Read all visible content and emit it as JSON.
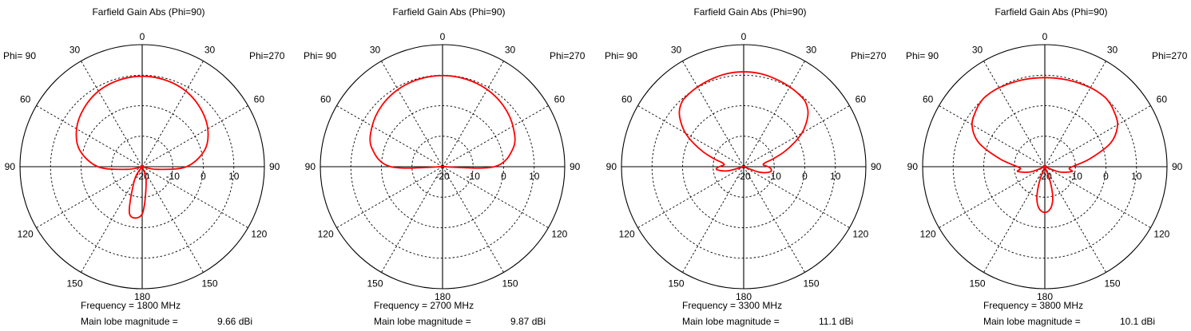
{
  "chart_data": [
    {
      "type": "polar",
      "title": "Farfield Gain Abs (Phi=90)",
      "left_label": "Phi= 90",
      "right_label": "Phi=270",
      "angle_labels": [
        "0",
        "30",
        "60",
        "90",
        "120",
        "150",
        "180",
        "150",
        "120",
        "90",
        "60",
        "30"
      ],
      "radial_ticks": [
        "-20",
        "-10",
        "0",
        "10"
      ],
      "rlim": [
        -20,
        20
      ],
      "grid": true,
      "series": [
        {
          "color": "#ff0000",
          "theta_deg": [
            0,
            15,
            30,
            45,
            60,
            75,
            90,
            100,
            110,
            120,
            135,
            150,
            165,
            180,
            195,
            210,
            225,
            240,
            250,
            260,
            270,
            285,
            300,
            315,
            330,
            345
          ],
          "gain_dbi": [
            9.66,
            9.4,
            8.6,
            7.0,
            4.8,
            1.2,
            -5.5,
            -15,
            -20,
            -20,
            -20,
            -15,
            -4.0,
            -4.5,
            -15,
            -20,
            -20,
            -20,
            -20,
            -15,
            -5.5,
            1.2,
            4.8,
            7.0,
            8.6,
            9.4
          ]
        }
      ],
      "frequency_text": "Frequency = 1800 MHz",
      "main_lobe_label": "Main lobe magnitude =",
      "main_lobe_value": "9.66 dBi"
    },
    {
      "type": "polar",
      "title": "Farfield Gain Abs (Phi=90)",
      "left_label": "Phi= 90",
      "right_label": "Phi=270",
      "angle_labels": [
        "0",
        "30",
        "60",
        "90",
        "120",
        "150",
        "180",
        "150",
        "120",
        "90",
        "60",
        "30"
      ],
      "radial_ticks": [
        "-20",
        "-10",
        "0",
        "10"
      ],
      "rlim": [
        -20,
        20
      ],
      "grid": true,
      "series": [
        {
          "color": "#ff0000",
          "theta_deg": [
            0,
            15,
            30,
            45,
            60,
            75,
            90,
            100,
            110,
            120,
            135,
            150,
            165,
            180,
            195,
            210,
            225,
            240,
            250,
            260,
            270,
            285,
            300,
            315,
            330,
            345
          ],
          "gain_dbi": [
            9.87,
            9.7,
            9.2,
            8.2,
            6.6,
            4.0,
            -3.0,
            -20,
            -20,
            -20,
            -20,
            -20,
            -20,
            -20,
            -20,
            -20,
            -20,
            -20,
            -20,
            -20,
            -3.0,
            4.0,
            6.6,
            8.2,
            9.2,
            9.7
          ]
        }
      ],
      "frequency_text": "Frequency = 2700 MHz",
      "main_lobe_label": "Main lobe magnitude =",
      "main_lobe_value": "9.87 dBi"
    },
    {
      "type": "polar",
      "title": "Farfield Gain Abs (Phi=90)",
      "left_label": "Phi= 90",
      "right_label": "Phi=270",
      "angle_labels": [
        "0",
        "30",
        "60",
        "90",
        "120",
        "150",
        "180",
        "150",
        "120",
        "90",
        "60",
        "30"
      ],
      "radial_ticks": [
        "-20",
        "-10",
        "0",
        "10"
      ],
      "rlim": [
        -20,
        20
      ],
      "grid": true,
      "series": [
        {
          "color": "#ff0000",
          "theta_deg": [
            0,
            10,
            20,
            30,
            40,
            45,
            50,
            55,
            60,
            65,
            70,
            75,
            80,
            85,
            90,
            95,
            100,
            105,
            110,
            120,
            135,
            150,
            165,
            180,
            195,
            210,
            225,
            240,
            250,
            255,
            260,
            265,
            270,
            275,
            280,
            285,
            290,
            295,
            300,
            305,
            310,
            315,
            320,
            330,
            340,
            350
          ],
          "gain_dbi": [
            11.1,
            11.0,
            10.6,
            10.2,
            9.7,
            9.0,
            7.5,
            5.0,
            2.0,
            -2.0,
            -6.0,
            -10.0,
            -13.0,
            -13.5,
            -12.0,
            -11.0,
            -12.5,
            -15.0,
            -20,
            -20,
            -20,
            -20,
            -20,
            -20,
            -20,
            -20,
            -20,
            -20,
            -15.0,
            -12.5,
            -11.0,
            -11.0,
            -12.0,
            -13.5,
            -13.0,
            -10.0,
            -6.0,
            -2.0,
            2.0,
            5.0,
            7.5,
            9.0,
            9.7,
            10.2,
            10.6,
            11.0
          ]
        }
      ],
      "frequency_text": "Frequency = 3300 MHz",
      "main_lobe_label": "Main lobe magnitude =",
      "main_lobe_value": "11.1 dBi"
    },
    {
      "type": "polar",
      "title": "Farfield Gain Abs (Phi=90)",
      "left_label": "Phi= 90",
      "right_label": "Phi=270",
      "angle_labels": [
        "0",
        "30",
        "60",
        "90",
        "120",
        "150",
        "180",
        "150",
        "120",
        "90",
        "60",
        "30"
      ],
      "radial_ticks": [
        "-20",
        "-10",
        "0",
        "10"
      ],
      "rlim": [
        -20,
        20
      ],
      "grid": true,
      "series": [
        {
          "color": "#ff0000",
          "theta_deg": [
            0,
            15,
            30,
            40,
            45,
            50,
            60,
            70,
            80,
            90,
            95,
            100,
            110,
            120,
            135,
            150,
            160,
            165,
            170,
            175,
            180,
            185,
            190,
            195,
            200,
            210,
            225,
            240,
            250,
            260,
            265,
            270,
            280,
            290,
            300,
            310,
            315,
            320,
            330,
            345
          ],
          "gain_dbi": [
            9.2,
            9.4,
            9.9,
            10.1,
            9.8,
            9.2,
            7.5,
            3.0,
            -5.0,
            -11.0,
            -12.0,
            -11.0,
            -15.0,
            -20,
            -20,
            -20,
            -15.0,
            -10.0,
            -7.0,
            -5.5,
            -5.0,
            -5.5,
            -7.0,
            -10.0,
            -15.0,
            -20,
            -20,
            -20,
            -15.0,
            -11.0,
            -12.0,
            -11.0,
            -5.0,
            3.0,
            7.5,
            9.2,
            9.8,
            10.1,
            9.9,
            9.4
          ]
        }
      ],
      "frequency_text": "Frequency = 3800 MHz",
      "main_lobe_label": "Main lobe magnitude =",
      "main_lobe_value": "10.1 dBi"
    }
  ]
}
